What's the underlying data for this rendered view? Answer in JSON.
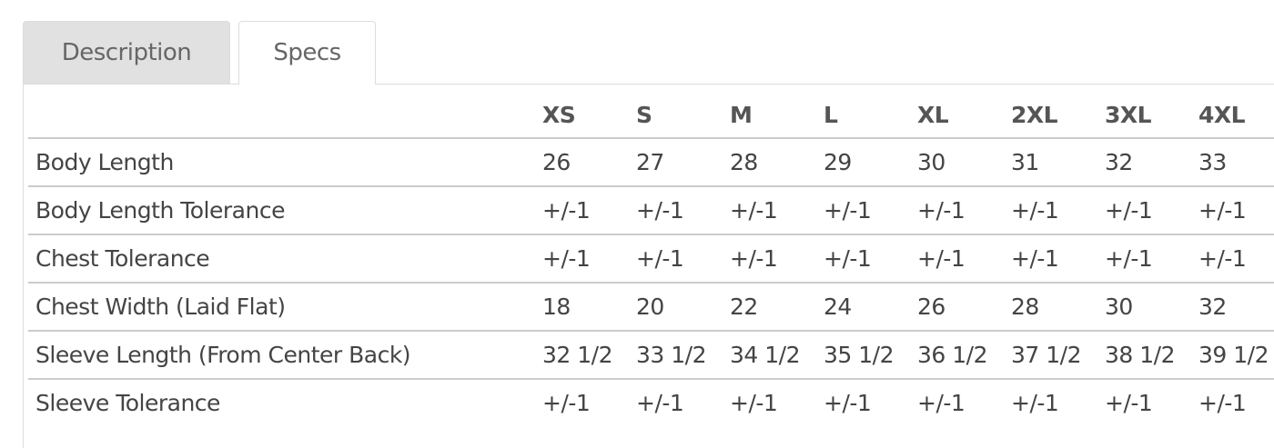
{
  "tabs": [
    {
      "label": "Description",
      "active": false
    },
    {
      "label": "Specs",
      "active": true
    }
  ],
  "table": {
    "columns": [
      "XS",
      "S",
      "M",
      "L",
      "XL",
      "2XL",
      "3XL",
      "4XL"
    ],
    "rows": [
      {
        "label": "Body Length",
        "values": [
          "26",
          "27",
          "28",
          "29",
          "30",
          "31",
          "32",
          "33"
        ]
      },
      {
        "label": "Body Length Tolerance",
        "values": [
          "+/-1",
          "+/-1",
          "+/-1",
          "+/-1",
          "+/-1",
          "+/-1",
          "+/-1",
          "+/-1"
        ]
      },
      {
        "label": "Chest Tolerance",
        "values": [
          "+/-1",
          "+/-1",
          "+/-1",
          "+/-1",
          "+/-1",
          "+/-1",
          "+/-1",
          "+/-1"
        ]
      },
      {
        "label": "Chest Width (Laid Flat)",
        "values": [
          "18",
          "20",
          "22",
          "24",
          "26",
          "28",
          "30",
          "32"
        ]
      },
      {
        "label": "Sleeve Length (From Center Back)",
        "values": [
          "32 1/2",
          "33 1/2",
          "34 1/2",
          "35 1/2",
          "36 1/2",
          "37 1/2",
          "38 1/2",
          "39 1/2"
        ]
      },
      {
        "label": "Sleeve Tolerance",
        "values": [
          "+/-1",
          "+/-1",
          "+/-1",
          "+/-1",
          "+/-1",
          "+/-1",
          "+/-1",
          "+/-1"
        ]
      }
    ]
  }
}
